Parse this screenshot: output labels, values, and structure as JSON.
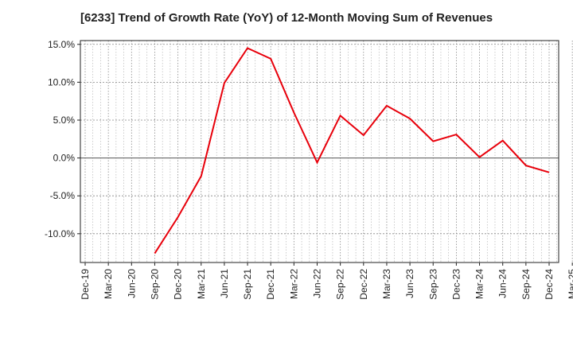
{
  "chart_data": {
    "type": "line",
    "title": "[6233]  Trend of Growth Rate (YoY) of 12-Month Moving Sum of Revenues",
    "xlabel": "",
    "ylabel": "",
    "x_categories": [
      "Dec-19",
      "Mar-20",
      "Jun-20",
      "Sep-20",
      "Dec-20",
      "Mar-21",
      "Jun-21",
      "Sep-21",
      "Dec-21",
      "Mar-22",
      "Jun-22",
      "Sep-22",
      "Dec-22",
      "Mar-23",
      "Jun-23",
      "Sep-23",
      "Dec-23",
      "Mar-24",
      "Jun-24",
      "Sep-24",
      "Dec-24",
      "Mar-25"
    ],
    "y_ticks": [
      15.0,
      10.0,
      5.0,
      0.0,
      -5.0,
      -10.0
    ],
    "y_tick_labels": [
      "15.0%",
      "10.0%",
      "5.0%",
      "0.0%",
      "-5.0%",
      "-10.0%"
    ],
    "ylim": [
      -13.8,
      15.5
    ],
    "grid": true,
    "series": [
      {
        "color": "#e8000b",
        "values": [
          null,
          null,
          null,
          -12.6,
          -7.8,
          -2.4,
          9.9,
          14.5,
          13.1,
          6.0,
          -0.6,
          5.6,
          3.0,
          6.9,
          5.2,
          2.2,
          3.1,
          0.1,
          2.3,
          -1.0,
          -1.9,
          null
        ]
      }
    ]
  }
}
